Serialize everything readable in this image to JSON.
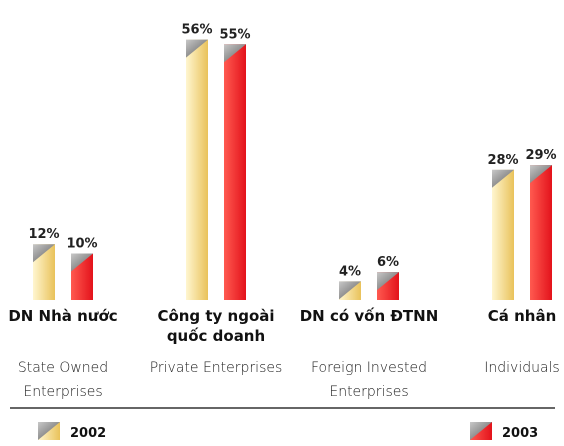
{
  "chart_data": {
    "type": "bar",
    "categories": [
      "DN Nhà nước",
      "Công ty ngoài quốc doanh",
      "DN có vốn ĐTNN",
      "Cá nhân"
    ],
    "subcategories": [
      "State Owned Enterprises",
      "Private Enterprises",
      "Foreign Invested Enterprises",
      "Individuals"
    ],
    "series": [
      {
        "name": "2002",
        "color": "#e9c25a",
        "values": [
          12,
          56,
          4,
          28
        ],
        "value_labels": [
          "12%",
          "56%",
          "4%",
          "28%"
        ]
      },
      {
        "name": "2003",
        "color": "#e3121b",
        "values": [
          10,
          55,
          6,
          29
        ],
        "value_labels": [
          "10%",
          "55%",
          "6%",
          "29%"
        ]
      }
    ],
    "legend": "bottom"
  }
}
